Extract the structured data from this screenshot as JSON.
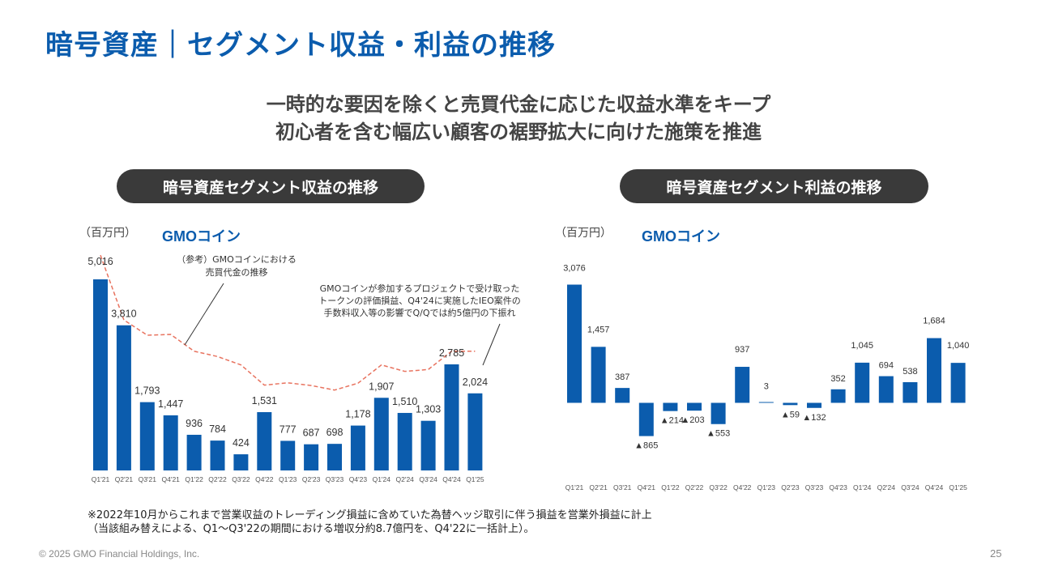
{
  "page": {
    "title": "暗号資産｜セグメント収益・利益の推移",
    "headline_1": "一時的な要因を除くと売買代金に応じた収益水準をキープ",
    "headline_2": "初心者を含む幅広い顧客の裾野拡大に向けた施策を推進",
    "note_1": "※2022年10月からこれまで営業収益のトレーディング損益に含めていた為替ヘッジ取引に伴う損益を営業外損益に計上",
    "note_2": "（当該組み替えによる、Q1～Q3'22の期間における増収分約8.7億円を、Q4'22に一括計上）。",
    "copyright": "© 2025 GMO Financial Holdings, Inc.",
    "page_number": "25",
    "logo_gmo": "GMO",
    "logo_coin": "コイン",
    "accent_color": "#0b5cad"
  },
  "chart_data": [
    {
      "type": "bar",
      "title": "暗号資産セグメント収益の推移",
      "unit": "（百万円）",
      "categories": [
        "Q1'21",
        "Q2'21",
        "Q3'21",
        "Q4'21",
        "Q1'22",
        "Q2'22",
        "Q3'22",
        "Q4'22",
        "Q1'23",
        "Q2'23",
        "Q3'23",
        "Q4'23",
        "Q1'24",
        "Q2'24",
        "Q3'24",
        "Q4'24",
        "Q1'25"
      ],
      "values": [
        5016,
        3810,
        1793,
        1447,
        936,
        784,
        424,
        1531,
        777,
        687,
        698,
        1178,
        1907,
        1510,
        1303,
        2785,
        2024
      ],
      "labels": [
        "5,016",
        "3,810",
        "1,793",
        "1,447",
        "936",
        "784",
        "424",
        "1,531",
        "777",
        "687",
        "698",
        "1,178",
        "1,907",
        "1,510",
        "1,303",
        "2,785",
        "2,024"
      ],
      "reference_line": [
        5650,
        3950,
        3550,
        3570,
        3130,
        2990,
        2770,
        2240,
        2300,
        2230,
        2110,
        2290,
        2770,
        2600,
        2650,
        3130,
        3130
      ],
      "bar_color": "#0b5cad",
      "line_color": "#e8735f",
      "annotation_1": "（参考）GMOコインにおける",
      "annotation_2": "売買代金の推移",
      "annotation_3": "GMOコインが参加するプロジェクトで受け取った",
      "annotation_4": "トークンの評価損益、Q4'24に実施したIEO案件の",
      "annotation_5": "手数料収入等の影響でQ/Qでは約5億円の下振れ"
    },
    {
      "type": "bar",
      "title": "暗号資産セグメント利益の推移",
      "unit": "（百万円）",
      "categories": [
        "Q1'21",
        "Q2'21",
        "Q3'21",
        "Q4'21",
        "Q1'22",
        "Q2'22",
        "Q3'22",
        "Q4'22",
        "Q1'23",
        "Q2'23",
        "Q3'23",
        "Q4'23",
        "Q1'24",
        "Q2'24",
        "Q3'24",
        "Q4'24",
        "Q1'25"
      ],
      "values": [
        3076,
        1457,
        387,
        -865,
        -214,
        -203,
        -553,
        937,
        3,
        -59,
        -132,
        352,
        1045,
        694,
        538,
        1684,
        1040
      ],
      "labels": [
        "3,076",
        "1,457",
        "387",
        "▲865",
        "▲214",
        "▲203",
        "▲553",
        "937",
        "3",
        "▲59",
        "▲132",
        "352",
        "1,045",
        "694",
        "538",
        "1,684",
        "1,040"
      ],
      "bar_color": "#0b5cad"
    }
  ]
}
